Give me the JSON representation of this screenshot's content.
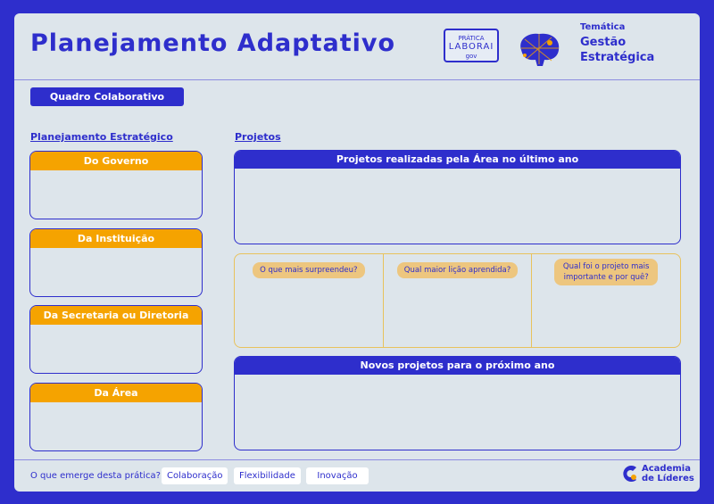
{
  "header": {
    "title": "Planejamento Adaptativo",
    "logo_text": [
      "PRÁTICA",
      "LABORAI",
      "gov"
    ],
    "tematica_label": "Temática",
    "tematica_value": "Gestão Estratégica"
  },
  "quadro_button": "Quadro Colaborativo",
  "left": {
    "title": "Planejamento Estratégico",
    "cards": [
      "Do Governo",
      "Da Instituição",
      "Da Secretaria ou Diretoria",
      "Da Área"
    ]
  },
  "right": {
    "title": "Projetos",
    "past": "Projetos realizadas pela Área no último ano",
    "questions": [
      "O que mais surpreendeu?",
      "Qual maior lição aprendida?",
      "Qual foi o projeto mais importante e por quê?"
    ],
    "next": "Novos projetos para o próximo ano"
  },
  "footer": {
    "question": "O que emerge desta prática?",
    "tags": [
      "Colaboração",
      "Flexibilidade",
      "Inovação"
    ],
    "brand": [
      "Academia",
      "de Líderes"
    ]
  },
  "colors": {
    "blue": "#2e2ecc",
    "orange": "#f5a300",
    "pill": "#edc67f",
    "panel": "#dde5eb"
  }
}
